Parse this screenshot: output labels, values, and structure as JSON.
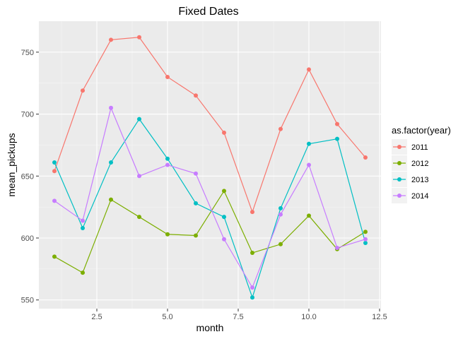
{
  "chart_data": {
    "type": "line",
    "title": "Fixed Dates",
    "xlabel": "month",
    "ylabel": "mean_pickups",
    "xlim": [
      0.45,
      12.55
    ],
    "ylim": [
      543,
      775
    ],
    "x_ticks": [
      2.5,
      5.0,
      7.5,
      10.0,
      12.5
    ],
    "x_tick_labels": [
      "2.5",
      "5.0",
      "7.5",
      "10.0",
      "12.5"
    ],
    "y_ticks": [
      550,
      600,
      650,
      700,
      750
    ],
    "y_tick_labels": [
      "550",
      "600",
      "650",
      "700",
      "750"
    ],
    "grid": true,
    "legend": {
      "title": "as.factor(year)",
      "placement": "right"
    },
    "x": [
      1,
      2,
      3,
      4,
      5,
      6,
      7,
      8,
      9,
      10,
      11,
      12
    ],
    "series": [
      {
        "name": "2011",
        "color": "#F8766D",
        "values": [
          654,
          719,
          760,
          762,
          730,
          715,
          685,
          621,
          688,
          736,
          692,
          665
        ]
      },
      {
        "name": "2012",
        "color": "#7CAE00",
        "values": [
          585,
          572,
          631,
          617,
          603,
          602,
          638,
          588,
          595,
          618,
          591,
          605
        ]
      },
      {
        "name": "2013",
        "color": "#00BFC4",
        "values": [
          661,
          608,
          661,
          696,
          664,
          628,
          617,
          552,
          624,
          676,
          680,
          596
        ]
      },
      {
        "name": "2014",
        "color": "#C77CFF",
        "values": [
          630,
          614,
          705,
          650,
          659,
          652,
          599,
          560,
          619,
          659,
          592,
          599
        ]
      }
    ]
  }
}
